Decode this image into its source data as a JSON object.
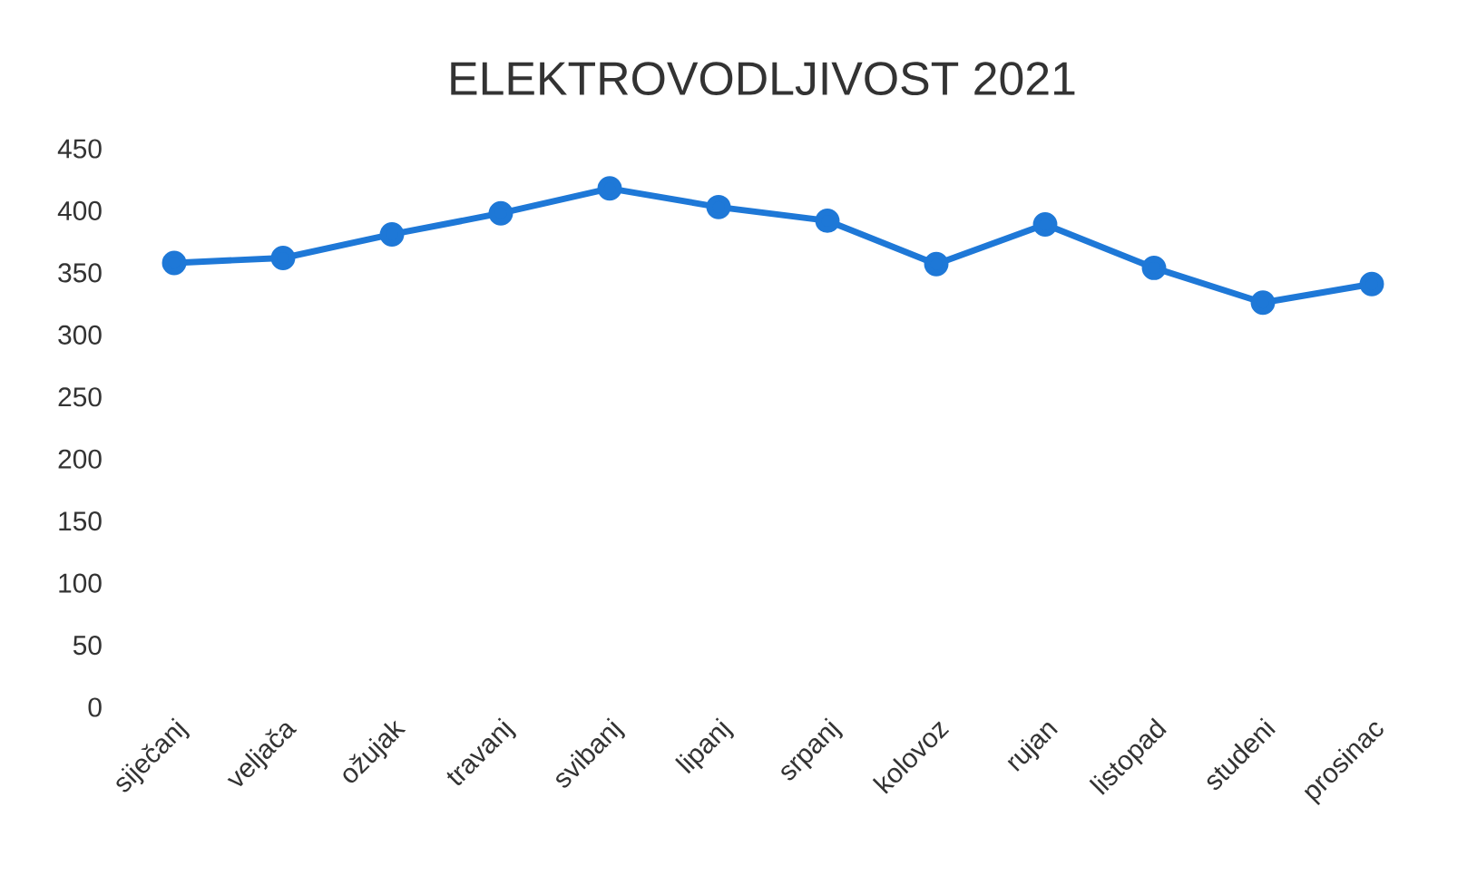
{
  "chart_data": {
    "type": "line",
    "title": "ELEKTROVODLJIVOST 2021",
    "categories": [
      "siječanj",
      "veljača",
      "ožujak",
      "travanj",
      "svibanj",
      "lipanj",
      "srpanj",
      "kolovoz",
      "rujan",
      "listopad",
      "studeni",
      "prosinac"
    ],
    "series": [
      {
        "color": "#1e78d7",
        "values": [
          358,
          362,
          381,
          398,
          418,
          403,
          392,
          357,
          389,
          354,
          326,
          341
        ]
      }
    ],
    "ylim": [
      0,
      450
    ],
    "yticks": [
      0,
      50,
      100,
      150,
      200,
      250,
      300,
      350,
      400,
      450
    ],
    "marker": "circle",
    "line_style": "solid"
  }
}
